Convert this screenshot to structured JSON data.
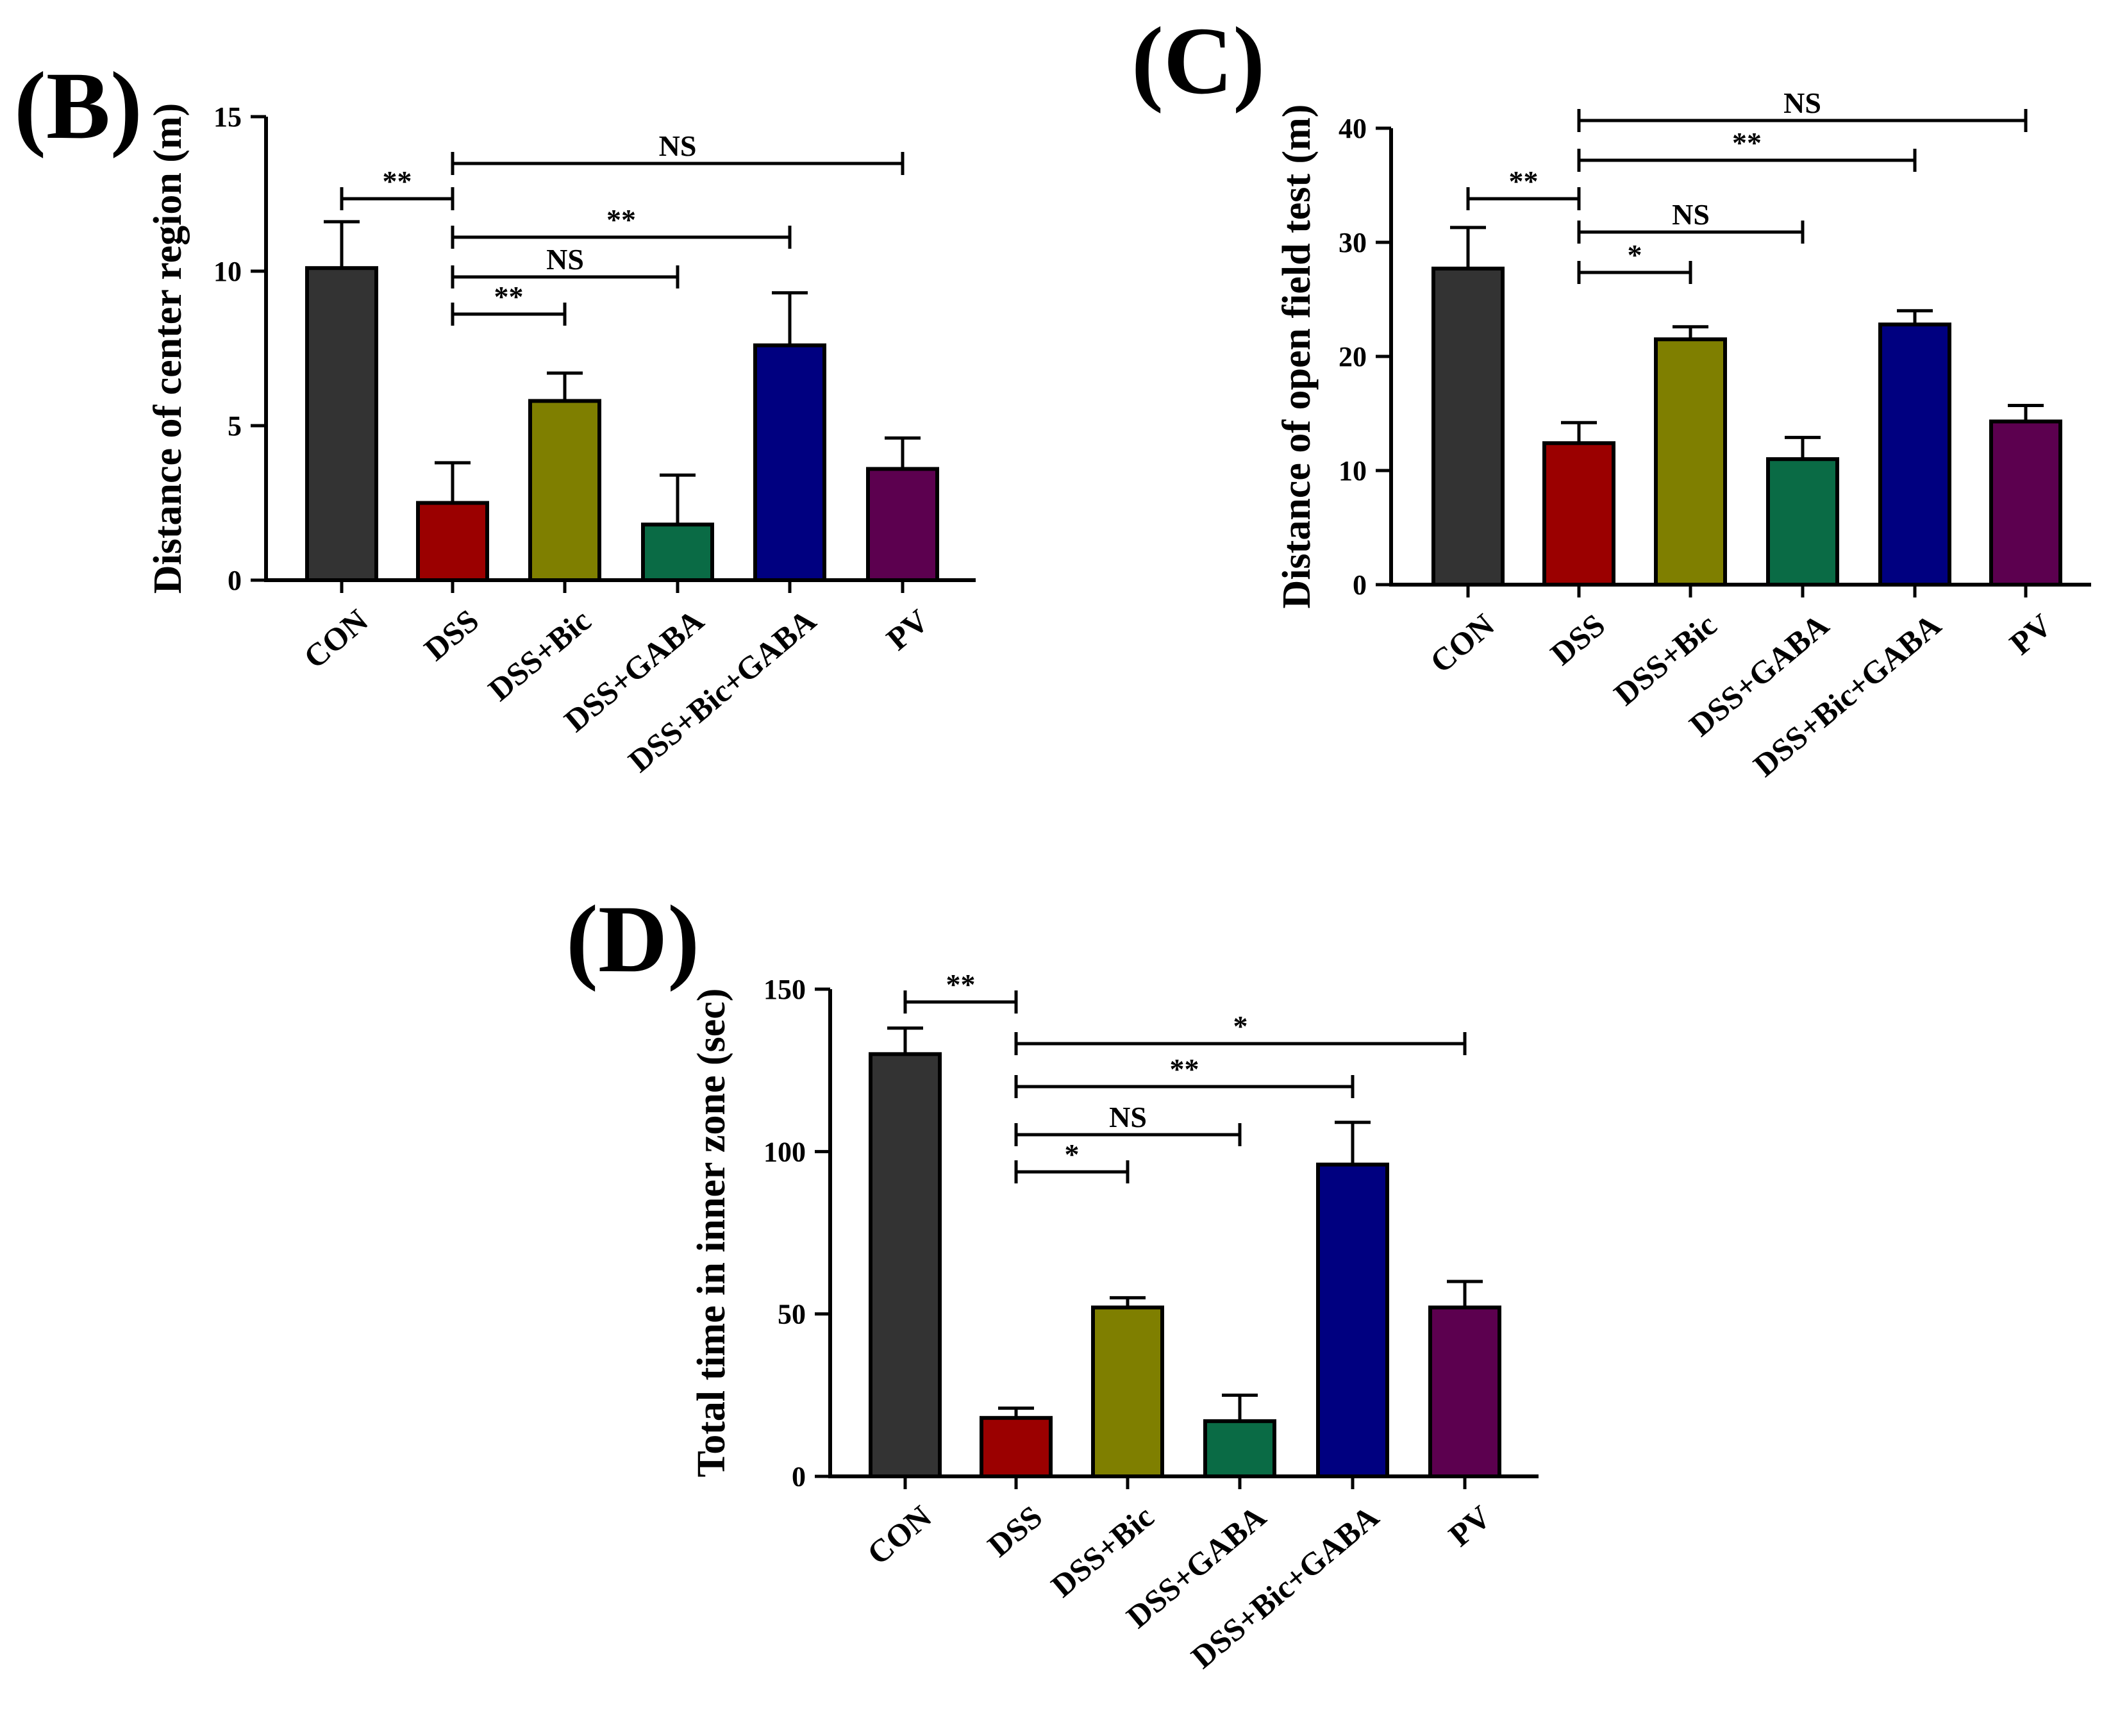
{
  "colors": {
    "CON": "#333333",
    "DSS": "#9b0000",
    "DSS+Bic": "#7f7f00",
    "DSS+GABA": "#0a6b45",
    "DSS+Bic+GABA": "#000080",
    "PV": "#5c004f"
  },
  "chart_data": [
    {
      "panel": "(B)",
      "type": "bar",
      "ylabel": "Distance of center region (m)",
      "categories": [
        "CON",
        "DSS",
        "DSS+Bic",
        "DSS+GABA",
        "DSS+Bic+GABA",
        "PV"
      ],
      "values": [
        10.1,
        2.5,
        5.8,
        1.8,
        7.6,
        3.6
      ],
      "errors": [
        1.5,
        1.3,
        0.9,
        1.6,
        1.7,
        1.0
      ],
      "ylim": [
        0,
        15
      ],
      "yticks": [
        0,
        5,
        10,
        15
      ],
      "comparisons": [
        {
          "from": "CON",
          "to": "DSS",
          "label": "**"
        },
        {
          "from": "DSS",
          "to": "PV",
          "label": "NS"
        },
        {
          "from": "DSS",
          "to": "DSS+Bic+GABA",
          "label": "**"
        },
        {
          "from": "DSS",
          "to": "DSS+GABA",
          "label": "NS"
        },
        {
          "from": "DSS",
          "to": "DSS+Bic",
          "label": "**"
        }
      ]
    },
    {
      "panel": "(C)",
      "type": "bar",
      "ylabel": "Distance of open field test (m)",
      "categories": [
        "CON",
        "DSS",
        "DSS+Bic",
        "DSS+GABA",
        "DSS+Bic+GABA",
        "PV"
      ],
      "values": [
        27.7,
        12.4,
        21.5,
        11.0,
        22.8,
        14.3
      ],
      "errors": [
        3.6,
        1.8,
        1.1,
        1.9,
        1.2,
        1.4
      ],
      "ylim": [
        0,
        40
      ],
      "yticks": [
        0,
        10,
        20,
        30,
        40
      ],
      "comparisons": [
        {
          "from": "DSS",
          "to": "PV",
          "label": "NS"
        },
        {
          "from": "DSS",
          "to": "DSS+Bic+GABA",
          "label": "**"
        },
        {
          "from": "CON",
          "to": "DSS",
          "label": "**"
        },
        {
          "from": "DSS",
          "to": "DSS+GABA",
          "label": "NS"
        },
        {
          "from": "DSS",
          "to": "DSS+Bic",
          "label": "*"
        }
      ]
    },
    {
      "panel": "(D)",
      "type": "bar",
      "ylabel": "Total time in inner zone (sec)",
      "categories": [
        "CON",
        "DSS",
        "DSS+Bic",
        "DSS+GABA",
        "DSS+Bic+GABA",
        "PV"
      ],
      "values": [
        130,
        18,
        52,
        17,
        96,
        52
      ],
      "errors": [
        8,
        3,
        3,
        8,
        13,
        8
      ],
      "ylim": [
        0,
        150
      ],
      "yticks": [
        0,
        50,
        100,
        150
      ],
      "comparisons": [
        {
          "from": "CON",
          "to": "DSS",
          "label": "**"
        },
        {
          "from": "DSS",
          "to": "PV",
          "label": "*"
        },
        {
          "from": "DSS",
          "to": "DSS+Bic+GABA",
          "label": "**"
        },
        {
          "from": "DSS",
          "to": "DSS+GABA",
          "label": "NS"
        },
        {
          "from": "DSS",
          "to": "DSS+Bic",
          "label": "*"
        }
      ]
    }
  ]
}
